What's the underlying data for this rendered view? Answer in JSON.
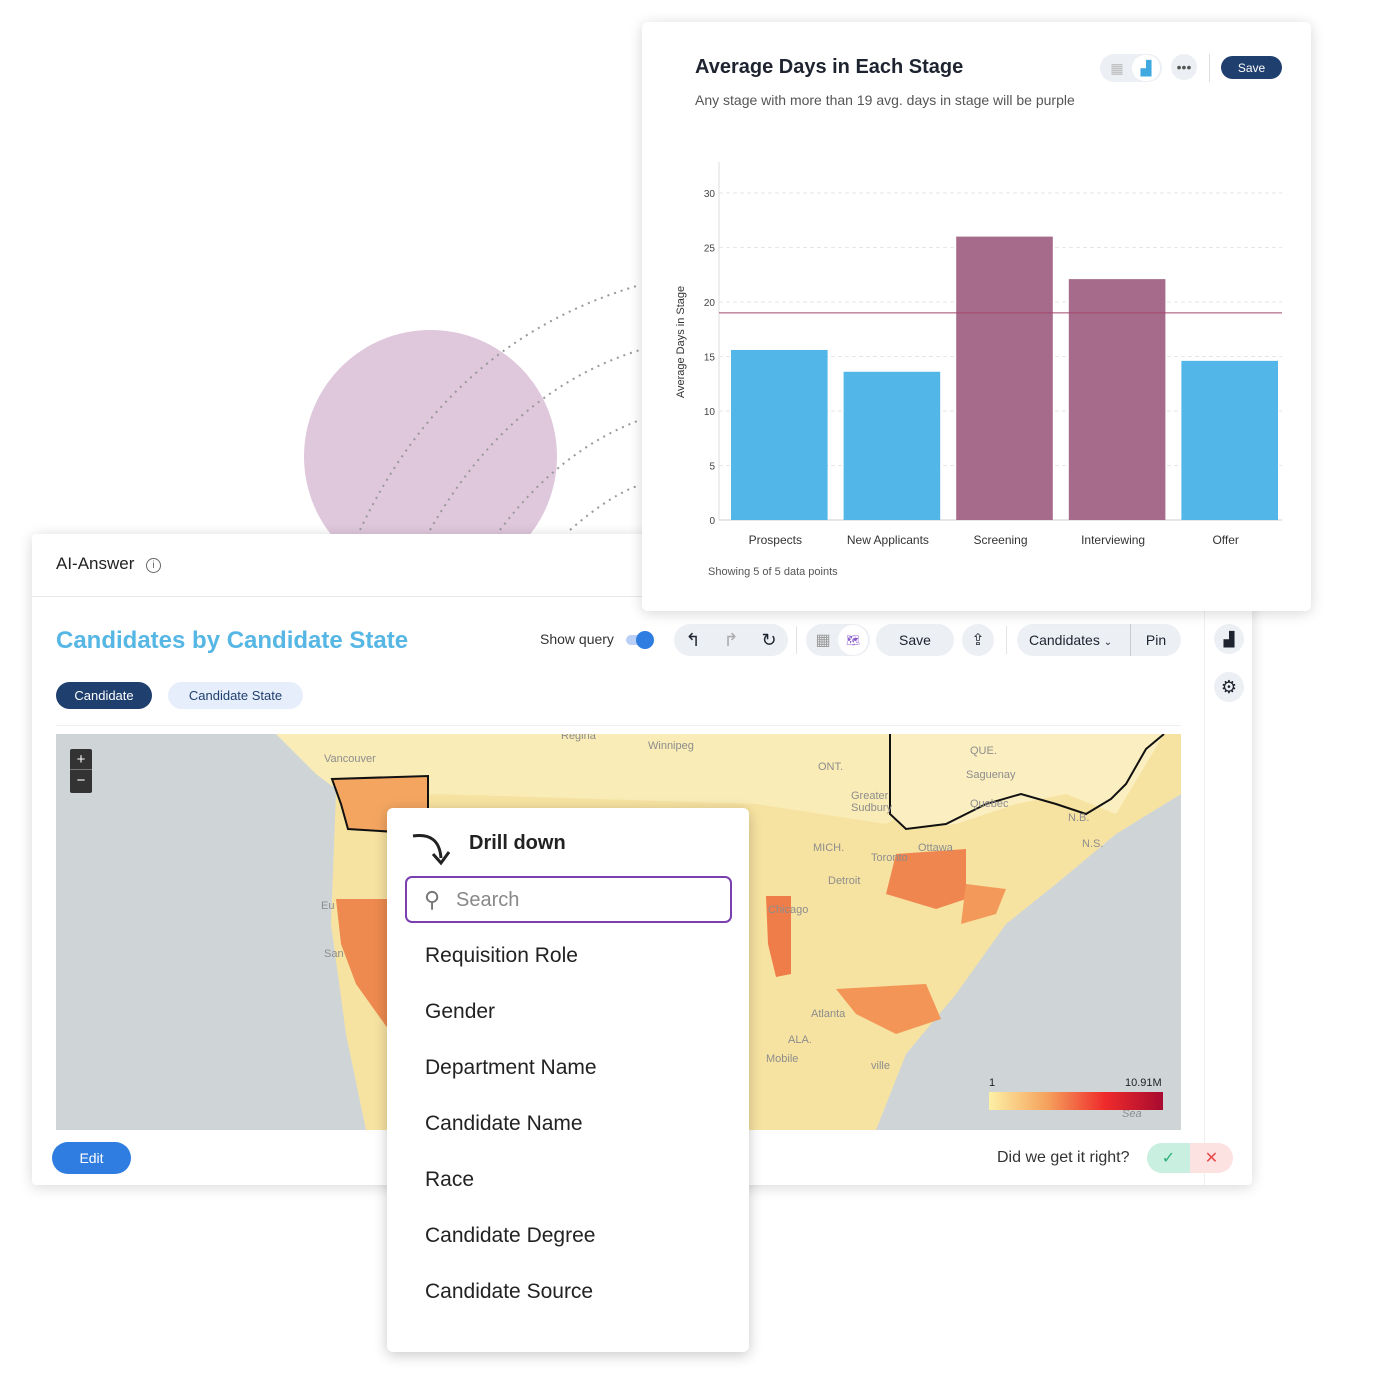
{
  "chart_card": {
    "title": "Average Days in Each Stage",
    "subtitle": "Any stage with more than 19 avg. days in stage will be purple",
    "save_label": "Save",
    "more_icon": "ellipsis-icon",
    "footer": "Showing 5 of 5 data points"
  },
  "chart_data": {
    "type": "bar",
    "categories": [
      "Prospects",
      "New Applicants",
      "Screening",
      "Interviewing",
      "Offer"
    ],
    "values": [
      15.6,
      13.6,
      26.0,
      22.1,
      14.6
    ],
    "ylabel": "Average Days in Stage",
    "xlabel": "",
    "ylim": [
      0,
      30
    ],
    "yticks": [
      0,
      5,
      10,
      15,
      20,
      25,
      30
    ],
    "threshold": 19,
    "colors": {
      "below": "#52b7e8",
      "above": "#a66b8a",
      "threshold_line": "#a3476c"
    },
    "grid": true
  },
  "ai_card": {
    "header": "AI-Answer",
    "title": "Candidates by Candidate State",
    "show_query_label": "Show query",
    "show_query_on": true,
    "save_label": "Save",
    "candidates_label": "Candidates",
    "pin_label": "Pin",
    "chips": [
      "Candidate",
      "Candidate State"
    ],
    "edit_label": "Edit",
    "feedback_prompt": "Did we get it right?",
    "accent": "#2f7de1"
  },
  "map": {
    "legend_min": "1",
    "legend_max": "10.91M",
    "zoom_in": "+",
    "zoom_out": "−",
    "labels": [
      "Regina",
      "Winnipeg",
      "Vancouver",
      "ONT.",
      "QUE.",
      "Saguenay",
      "Quebec",
      "Greater Sudbury",
      "Toronto",
      "Ottawa",
      "Detroit",
      "Chicago",
      "MICH.",
      "N.B.",
      "N.S.",
      "Eu",
      "San",
      "Atlanta",
      "Mobile",
      "ALA.",
      "ville",
      "Sea"
    ]
  },
  "drill": {
    "title": "Drill down",
    "search_placeholder": "Search",
    "items": [
      "Requisition Role",
      "Gender",
      "Department Name",
      "Candidate Name",
      "Race",
      "Candidate Degree",
      "Candidate Source"
    ]
  }
}
